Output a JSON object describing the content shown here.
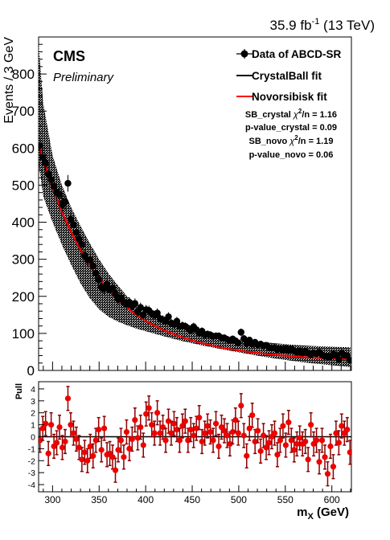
{
  "header": {
    "lumi_value": "35.9 fb",
    "lumi_exp": "-1",
    "lumi_energy": " (13 TeV)"
  },
  "labels": {
    "experiment": "CMS",
    "status": "Preliminary"
  },
  "legend": {
    "data": "Data of ABCD-SR",
    "crystalball": "CrystalBall fit",
    "novosibirsk": "Novorsibisk fit"
  },
  "stats": {
    "sb_crystal_prefix": "SB_crystal",
    "sb_crystal_chi": "χ",
    "sb_crystal_sup": "2",
    "sb_crystal_suffix": "/n = 1.16",
    "p_crystal": "p-value_crystal = 0.09",
    "sb_novo_prefix": "SB_novo",
    "sb_novo_chi": "χ",
    "sb_novo_sup": "2",
    "sb_novo_suffix": "/n = 1.19",
    "p_novo": "p-value_novo = 0.06"
  },
  "colors": {
    "fit_red": "#ff0000",
    "fit_black": "#000000",
    "marker_fill": "#000000",
    "pull_fill": "#ee0000",
    "pull_errbar": "#8a0000"
  },
  "chart_data": [
    {
      "type": "scatter",
      "title": "",
      "ylabel": "Events / 3 GeV",
      "xlabel": "",
      "xlim": [
        285,
        621
      ],
      "ylim": [
        0,
        900
      ],
      "xticks": [
        300,
        350,
        400,
        450,
        500,
        550,
        600
      ],
      "yticks": [
        0,
        100,
        200,
        300,
        400,
        500,
        600,
        700,
        800
      ],
      "grid": false,
      "legend_position": "top-right",
      "series": [
        {
          "name": "Data of ABCD-SR",
          "x": [
            286.5,
            289.5,
            292.5,
            295.5,
            298.5,
            301.5,
            304.5,
            307.5,
            310.5,
            313.5,
            316.5,
            319.5,
            322.5,
            325.5,
            328.5,
            331.5,
            334.5,
            337.5,
            340.5,
            343.5,
            346.5,
            349.5,
            352.5,
            355.5,
            358.5,
            361.5,
            364.5,
            367.5,
            370.5,
            373.5,
            376.5,
            379.5,
            382.5,
            385.5,
            388.5,
            391.5,
            394.5,
            397.5,
            400.5,
            403.5,
            406.5,
            409.5,
            412.5,
            415.5,
            418.5,
            421.5,
            424.5,
            427.5,
            430.5,
            433.5,
            436.5,
            439.5,
            442.5,
            445.5,
            448.5,
            451.5,
            454.5,
            457.5,
            460.5,
            463.5,
            466.5,
            469.5,
            472.5,
            475.5,
            478.5,
            481.5,
            484.5,
            487.5,
            490.5,
            493.5,
            496.5,
            499.5,
            502.5,
            505.5,
            508.5,
            511.5,
            514.5,
            517.5,
            520.5,
            523.5,
            526.5,
            529.5,
            532.5,
            535.5,
            538.5,
            541.5,
            544.5,
            547.5,
            550.5,
            553.5,
            556.5,
            559.5,
            562.5,
            565.5,
            568.5,
            571.5,
            574.5,
            577.5,
            580.5,
            583.5,
            586.5,
            589.5,
            592.5,
            595.5,
            598.5,
            601.5,
            604.5,
            607.5,
            610.5,
            613.5,
            616.5,
            619.5
          ],
          "y": [
            606,
            575,
            560,
            530,
            515,
            497,
            480,
            475,
            448,
            455,
            505,
            408,
            393,
            372,
            355,
            340,
            310,
            298,
            298,
            282,
            262,
            245,
            225,
            220,
            232,
            217,
            222,
            206,
            192,
            196,
            184,
            179,
            184,
            175,
            181,
            158,
            170,
            149,
            164,
            162,
            154,
            149,
            155,
            140,
            137,
            132,
            145,
            128,
            125,
            133,
            119,
            121,
            119,
            114,
            108,
            118,
            110,
            101,
            106,
            97,
            98,
            96,
            92,
            93,
            93,
            88,
            88,
            84,
            81,
            85,
            80,
            74,
            103,
            86,
            72,
            82,
            71,
            76,
            69,
            71,
            66,
            68,
            62,
            60,
            62,
            56,
            59,
            55,
            60,
            53,
            58,
            52,
            49,
            53,
            47,
            51,
            47,
            42,
            47,
            45,
            49,
            42,
            38,
            37,
            37,
            45,
            41,
            30,
            47,
            41,
            40,
            27
          ]
        },
        {
          "name": "CrystalBall fit",
          "x": [
            285,
            290,
            295,
            300,
            305,
            310,
            315,
            320,
            325,
            330,
            335,
            340,
            345,
            350,
            355,
            360,
            365,
            370,
            375,
            380,
            385,
            390,
            395,
            400,
            405,
            410,
            415,
            420,
            425,
            430,
            435,
            440,
            445,
            450,
            455,
            460,
            465,
            470,
            475,
            480,
            485,
            490,
            495,
            500,
            505,
            510,
            515,
            520,
            525,
            530,
            535,
            540,
            545,
            550,
            555,
            560,
            565,
            570,
            575,
            580,
            585,
            590,
            595,
            600,
            605,
            610,
            615,
            620
          ],
          "y": [
            604,
            564,
            526,
            491,
            458,
            427,
            399,
            372,
            347,
            324,
            303,
            283,
            265,
            248,
            232,
            217,
            204,
            191,
            180,
            169,
            159,
            150,
            142,
            134,
            127,
            120,
            114,
            108,
            103,
            98,
            93,
            89,
            85,
            81,
            77,
            74,
            71,
            68,
            65,
            62,
            60,
            58,
            56,
            54,
            52,
            50,
            49,
            47,
            46,
            44,
            43,
            42,
            41,
            40,
            39,
            38,
            37,
            36,
            35.5,
            35,
            34,
            33.5,
            33,
            32.5,
            32,
            31.5,
            31,
            30.5
          ]
        },
        {
          "name": "Novorsibisk fit",
          "x": [
            285,
            290,
            295,
            300,
            305,
            310,
            315,
            320,
            325,
            330,
            335,
            340,
            345,
            350,
            355,
            360,
            365,
            370,
            375,
            380,
            385,
            390,
            395,
            400,
            405,
            410,
            415,
            420,
            425,
            430,
            435,
            440,
            445,
            450,
            455,
            460,
            465,
            470,
            475,
            480,
            485,
            490,
            495,
            500,
            505,
            510,
            515,
            520,
            525,
            530,
            535,
            540,
            545,
            550,
            555,
            560,
            565,
            570,
            575,
            580,
            585,
            590,
            595,
            600,
            605,
            610,
            615,
            620
          ],
          "y": [
            610,
            568,
            529,
            493,
            460,
            429,
            401,
            374,
            349,
            326,
            304,
            284,
            266,
            249,
            233,
            218,
            204,
            192,
            180,
            169,
            159,
            150,
            142,
            134,
            127,
            120,
            114,
            108,
            103,
            98,
            93,
            89,
            85,
            81,
            77,
            74,
            71,
            68,
            65,
            62,
            60,
            58,
            56,
            54,
            52,
            50,
            49,
            47,
            46,
            44,
            43,
            42,
            41,
            40,
            39,
            38,
            37,
            36,
            35.5,
            35,
            34,
            33.5,
            33,
            32.5,
            32,
            31.5,
            31,
            30.5
          ]
        }
      ],
      "uncertainty_band": {
        "x": [
          285,
          290,
          300,
          310,
          320,
          330,
          340,
          350,
          360,
          370,
          380,
          390,
          400,
          420,
          440,
          460,
          480,
          500,
          520,
          540,
          560,
          580,
          600,
          620
        ],
        "low": [
          560,
          470,
          400,
          340,
          285,
          235,
          195,
          165,
          145,
          132,
          122,
          113,
          106,
          92,
          79,
          68,
          58,
          49,
          40,
          32,
          25,
          19,
          14,
          9
        ],
        "high": [
          880,
          720,
          580,
          500,
          440,
          390,
          343,
          300,
          262,
          230,
          200,
          180,
          165,
          138,
          118,
          103,
          92,
          84,
          78,
          73,
          69,
          66,
          64,
          62
        ]
      }
    },
    {
      "type": "scatter",
      "title": "",
      "ylabel": "Pull",
      "xlabel": "m_X (GeV)",
      "xlim": [
        285,
        621
      ],
      "ylim": [
        -4.6,
        4.6
      ],
      "xticks": [
        300,
        350,
        400,
        450,
        500,
        550,
        600
      ],
      "yticks": [
        -4,
        -3,
        -2,
        -1,
        0,
        1,
        2,
        3,
        4
      ],
      "grid": false,
      "series": [
        {
          "name": "Pull",
          "x": [
            286.5,
            289.5,
            292.5,
            295.5,
            298.5,
            301.5,
            304.5,
            307.5,
            310.5,
            313.5,
            316.5,
            319.5,
            322.5,
            325.5,
            328.5,
            331.5,
            334.5,
            337.5,
            340.5,
            343.5,
            346.5,
            349.5,
            352.5,
            355.5,
            358.5,
            361.5,
            364.5,
            367.5,
            370.5,
            373.5,
            376.5,
            379.5,
            382.5,
            385.5,
            388.5,
            391.5,
            394.5,
            397.5,
            400.5,
            403.5,
            406.5,
            409.5,
            412.5,
            415.5,
            418.5,
            421.5,
            424.5,
            427.5,
            430.5,
            433.5,
            436.5,
            439.5,
            442.5,
            445.5,
            448.5,
            451.5,
            454.5,
            457.5,
            460.5,
            463.5,
            466.5,
            469.5,
            472.5,
            475.5,
            478.5,
            481.5,
            484.5,
            487.5,
            490.5,
            493.5,
            496.5,
            499.5,
            502.5,
            505.5,
            508.5,
            511.5,
            514.5,
            517.5,
            520.5,
            523.5,
            526.5,
            529.5,
            532.5,
            535.5,
            538.5,
            541.5,
            544.5,
            547.5,
            550.5,
            553.5,
            556.5,
            559.5,
            562.5,
            565.5,
            568.5,
            571.5,
            574.5,
            577.5,
            580.5,
            583.5,
            586.5,
            589.5,
            592.5,
            595.5,
            598.5,
            601.5,
            604.5,
            607.5,
            610.5,
            613.5,
            616.5,
            619.5
          ],
          "y": [
            -0.3,
            0.7,
            1.1,
            -1.4,
            1.0,
            -0.8,
            -0.5,
            0.8,
            -0.9,
            -0.4,
            3.2,
            1.0,
            0.3,
            -0.2,
            -0.9,
            -1.9,
            -1.3,
            -2.0,
            -0.8,
            -1.6,
            -0.3,
            0.6,
            -1.1,
            0.7,
            -1.5,
            -1.4,
            -1.7,
            -2.8,
            -1.1,
            -0.3,
            -1.7,
            0.4,
            -1.0,
            -0.2,
            1.4,
            -0.1,
            0.8,
            -0.7,
            1.9,
            2.4,
            1.0,
            0.3,
            2.0,
            0.3,
            0.8,
            -0.3,
            1.3,
            0.3,
            1.1,
            0.6,
            -0.3,
            0.9,
            1.3,
            -0.3,
            0.6,
            0.1,
            0.7,
            1.6,
            -0.4,
            0.3,
            0.9,
            0.4,
            -0.3,
            1.1,
            -0.8,
            0.8,
            0.5,
            0.1,
            -0.6,
            0.4,
            1.4,
            0.3,
            2.6,
            0.1,
            -1.6,
            0.7,
            1.8,
            -0.4,
            0.5,
            -1.2,
            0.1,
            -0.9,
            -0.5,
            0.0,
            0.3,
            -1.5,
            -0.3,
            0.9,
            -0.7,
            1.2,
            -0.3,
            -1.1,
            -0.6,
            -0.1,
            -0.6,
            -0.4,
            -1.9,
            1.0,
            -0.6,
            -0.3,
            -2.1,
            -0.3,
            -1.7,
            -3.1,
            -0.8,
            -2.5,
            0.3,
            -0.5,
            0.9,
            0.3,
            0.6,
            -1.3
          ]
        }
      ]
    }
  ]
}
